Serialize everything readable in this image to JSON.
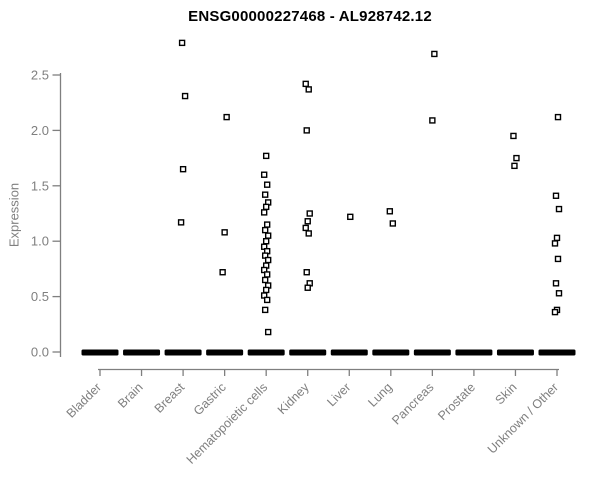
{
  "title": "ENSG00000227468 - AL928742.12",
  "chart_data": {
    "type": "scatter",
    "subtype": "strip-plot",
    "title": "ENSG00000227468 - AL928742.12",
    "xlabel": "",
    "ylabel": "Expression",
    "ylim": [
      0,
      2.8
    ],
    "ytick_labels": [
      "0.0",
      "0.5",
      "1.0",
      "1.5",
      "2.0",
      "2.5"
    ],
    "grid": false,
    "legend": "none",
    "point_style": "open-square",
    "zero_cluster_note": "each category has a dense cluster of samples at expression 0 drawn as a thick black dash",
    "colors": {
      "points": "#000000",
      "zero_bar": "#000000",
      "axis": "#7f7f7f",
      "tick_labels": "#7f7f7f",
      "title": "#000000",
      "background": "#ffffff"
    },
    "categories": [
      "Bladder",
      "Brain",
      "Breast",
      "Gastric",
      "Hematopoietic cells",
      "Kidney",
      "Liver",
      "Lung",
      "Pancreas",
      "Prostate",
      "Skin",
      "Unknown / Other"
    ],
    "series": [
      {
        "category": "Bladder",
        "values": [],
        "zero_cluster": true
      },
      {
        "category": "Brain",
        "values": [],
        "zero_cluster": true
      },
      {
        "category": "Breast",
        "values": [
          2.79,
          2.31,
          1.65,
          1.17
        ],
        "zero_cluster": true
      },
      {
        "category": "Gastric",
        "values": [
          2.12,
          1.08,
          0.72
        ],
        "zero_cluster": true
      },
      {
        "category": "Hematopoietic cells",
        "values": [
          1.77,
          1.6,
          1.51,
          1.42,
          1.35,
          1.31,
          1.26,
          1.15,
          1.1,
          1.05,
          1.0,
          0.95,
          0.91,
          0.87,
          0.83,
          0.78,
          0.74,
          0.7,
          0.65,
          0.6,
          0.56,
          0.51,
          0.47,
          0.38,
          0.18
        ],
        "zero_cluster": true
      },
      {
        "category": "Kidney",
        "values": [
          2.42,
          2.37,
          2.0,
          1.25,
          1.18,
          1.12,
          1.07,
          0.72,
          0.62,
          0.58
        ],
        "zero_cluster": true
      },
      {
        "category": "Liver",
        "values": [
          1.22
        ],
        "zero_cluster": true
      },
      {
        "category": "Lung",
        "values": [
          1.27,
          1.16
        ],
        "zero_cluster": true
      },
      {
        "category": "Pancreas",
        "values": [
          2.69,
          2.09
        ],
        "zero_cluster": true
      },
      {
        "category": "Prostate",
        "values": [],
        "zero_cluster": true
      },
      {
        "category": "Skin",
        "values": [
          1.95,
          1.75,
          1.68
        ],
        "zero_cluster": true
      },
      {
        "category": "Unknown / Other",
        "values": [
          2.12,
          1.41,
          1.29,
          1.03,
          0.98,
          0.84,
          0.62,
          0.53,
          0.38,
          0.36
        ],
        "zero_cluster": true
      }
    ]
  }
}
